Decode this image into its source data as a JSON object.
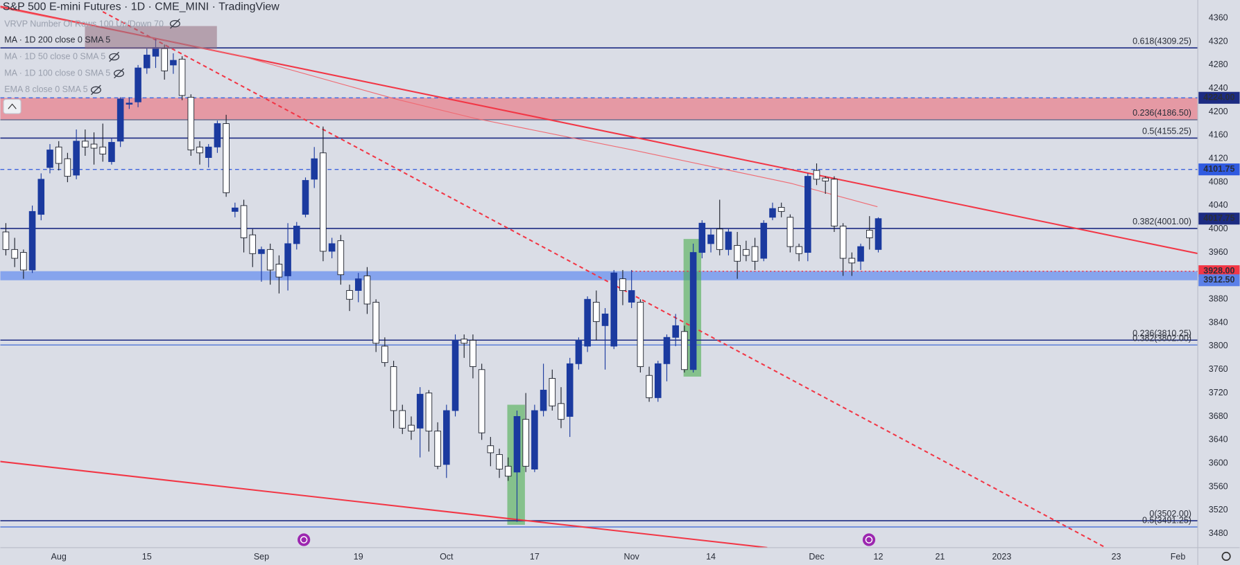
{
  "chart_data": {
    "type": "candlestick",
    "title": "S&P 500 E-mini Futures · 1D · CME_MINI · TradingView",
    "indicators": [
      "VRVP Number Of Rows 100 Up/Down 70",
      "MA · 1D 200 close 0 SMA 5",
      "MA · 1D 50 close 0 SMA 5",
      "MA · 1D 100 close 0 SMA 5",
      "EMA 8 close 0 SMA 5"
    ],
    "categories": [
      null,
      null,
      null,
      null,
      null,
      null,
      "Aug",
      null,
      null,
      null,
      null,
      null,
      null,
      null,
      null,
      null,
      "15",
      null,
      null,
      null,
      null,
      null,
      null,
      null,
      null,
      null,
      null,
      null,
      null,
      "Sep",
      null,
      null,
      null,
      null,
      null,
      null,
      null,
      null,
      null,
      null,
      "19",
      null,
      null,
      null,
      null,
      null,
      null,
      null,
      null,
      null,
      "Oct",
      null,
      null,
      null,
      null,
      null,
      null,
      null,
      null,
      null,
      "17",
      null,
      null,
      null,
      null,
      null,
      null,
      null,
      null,
      null,
      null,
      "Nov",
      null,
      null,
      null,
      null,
      null,
      null,
      null,
      null,
      "14",
      null,
      null,
      null,
      null,
      null,
      null,
      null,
      null,
      null,
      null,
      null,
      "Dec",
      null,
      null,
      null,
      null,
      null,
      null,
      "12",
      null,
      null,
      null,
      null,
      null,
      null,
      "21",
      null,
      null,
      null,
      null,
      null,
      null,
      "2023",
      null,
      null,
      null,
      null,
      null,
      null,
      null,
      null,
      null,
      null,
      null,
      null,
      "23",
      null,
      null,
      null,
      null,
      null,
      null,
      "Feb",
      null
    ],
    "open": [
      3995,
      3965,
      3960,
      3930,
      4025,
      4105,
      4140,
      4120,
      4092,
      4150,
      4145,
      4140,
      4115,
      4150,
      4213,
      4217,
      4275,
      4295,
      4308,
      4280,
      4290,
      4225,
      4140,
      4122,
      4140,
      4180,
      4030,
      4040,
      3990,
      3958,
      3965,
      3940,
      3920,
      3975,
      4025,
      4085,
      4130,
      3962,
      3980,
      3895,
      3895,
      3920,
      3875,
      3800,
      3765,
      3690,
      3665,
      3660,
      3720,
      3655,
      3598,
      3690,
      3812,
      3810,
      3760,
      3630,
      3615,
      3595,
      3585,
      3675,
      3590,
      3690,
      3745,
      3702,
      3680,
      3770,
      3800,
      3875,
      3835,
      3800,
      3915,
      3875,
      3875,
      3750,
      3712,
      3770,
      3815,
      3825,
      3760,
      3960,
      3975,
      4000,
      3965,
      3972,
      3965,
      3970,
      3950,
      4020,
      4037,
      4020,
      3970,
      3960,
      4100,
      4087,
      4085,
      4005,
      3950,
      3945,
      3998,
      3965,
      null,
      null,
      null,
      null,
      null,
      null,
      null,
      null,
      null,
      null,
      null,
      null,
      null,
      null,
      null,
      null,
      null,
      null,
      null,
      null,
      null,
      null,
      null,
      null,
      null,
      null,
      null,
      null,
      null,
      null,
      null,
      null,
      null,
      null,
      null
    ],
    "high": [
      4010,
      3985,
      3965,
      4040,
      4095,
      4145,
      4150,
      4130,
      4170,
      4170,
      4165,
      4180,
      4155,
      4225,
      4225,
      4280,
      4310,
      4325,
      4315,
      4300,
      4295,
      4230,
      4150,
      4145,
      4185,
      4195,
      4045,
      4050,
      4000,
      3970,
      3975,
      3955,
      4010,
      4012,
      4088,
      4140,
      4175,
      3985,
      3990,
      3905,
      3925,
      3935,
      3880,
      3815,
      3775,
      3700,
      3680,
      3730,
      3725,
      3670,
      3700,
      3820,
      3820,
      3820,
      3770,
      3645,
      3625,
      3610,
      3690,
      3720,
      3700,
      3770,
      3760,
      3730,
      3780,
      3815,
      3885,
      3895,
      3865,
      3930,
      3930,
      3930,
      3880,
      3765,
      3775,
      3820,
      3855,
      3835,
      3975,
      4015,
      4000,
      4050,
      4000,
      3995,
      3980,
      3985,
      4015,
      4045,
      4045,
      4025,
      3975,
      4095,
      4112,
      4090,
      4090,
      4010,
      3960,
      3975,
      4022,
      4020,
      null,
      null,
      null,
      null,
      null,
      null,
      null,
      null,
      null,
      null,
      null,
      null,
      null,
      null,
      null,
      null,
      null,
      null,
      null,
      null,
      null,
      null,
      null,
      null,
      null,
      null,
      null,
      null,
      null,
      null,
      null,
      null,
      null,
      null,
      null
    ],
    "low": [
      3955,
      3935,
      3915,
      3925,
      4015,
      4095,
      4100,
      4080,
      4085,
      4125,
      4110,
      4115,
      4110,
      4140,
      4205,
      4208,
      4265,
      4275,
      4255,
      4265,
      4220,
      4125,
      4110,
      4105,
      4130,
      4055,
      4020,
      3960,
      3935,
      3910,
      3905,
      3890,
      3895,
      3965,
      4020,
      4070,
      3945,
      3950,
      3905,
      3860,
      3875,
      3855,
      3790,
      3765,
      3660,
      3650,
      3640,
      3610,
      3620,
      3590,
      3575,
      3680,
      3780,
      3745,
      3640,
      3595,
      3575,
      3570,
      3500,
      3585,
      3585,
      3680,
      3690,
      3660,
      3645,
      3760,
      3790,
      3810,
      3760,
      3795,
      3870,
      3865,
      3755,
      3705,
      3705,
      3740,
      3800,
      3755,
      3755,
      3950,
      3960,
      3955,
      3955,
      3915,
      3945,
      3930,
      3945,
      4015,
      4020,
      3960,
      3945,
      3945,
      4075,
      4060,
      3995,
      3920,
      3920,
      3930,
      3965,
      3960,
      null,
      null,
      null,
      null,
      null,
      null,
      null,
      null,
      null,
      null,
      null,
      null,
      null,
      null,
      null,
      null,
      null,
      null,
      null,
      null,
      null,
      null,
      null,
      null,
      null,
      null,
      null,
      null,
      null,
      null,
      null,
      null,
      null,
      null,
      null
    ],
    "close": [
      3965,
      3950,
      3930,
      4030,
      4085,
      4135,
      4112,
      4090,
      4150,
      4140,
      4138,
      4128,
      4148,
      4222,
      4215,
      4275,
      4297,
      4310,
      4270,
      4288,
      4228,
      4135,
      4130,
      4140,
      4180,
      4062,
      4036,
      3985,
      3958,
      3965,
      3930,
      3918,
      3975,
      4005,
      4083,
      4120,
      3962,
      3975,
      3922,
      3880,
      3915,
      3872,
      3805,
      3772,
      3690,
      3660,
      3655,
      3718,
      3655,
      3595,
      3690,
      3810,
      3805,
      3765,
      3652,
      3618,
      3590,
      3578,
      3680,
      3595,
      3690,
      3725,
      3698,
      3675,
      3770,
      3810,
      3880,
      3842,
      3855,
      3925,
      3895,
      3895,
      3765,
      3712,
      3770,
      3815,
      3835,
      3760,
      3960,
      4010,
      3990,
      3965,
      3995,
      3945,
      3955,
      3945,
      4010,
      4035,
      4030,
      3970,
      3958,
      4090,
      4085,
      4082,
      4005,
      3950,
      3942,
      3970,
      3985,
      4017.75,
      null,
      null,
      null,
      null,
      null,
      null,
      null,
      null,
      null,
      null,
      null,
      null,
      null,
      null,
      null,
      null,
      null,
      null,
      null,
      null,
      null,
      null,
      null,
      null,
      null,
      null,
      null,
      null,
      null,
      null,
      null,
      null,
      null,
      null,
      null
    ],
    "up_color": "#1b3a9f",
    "down_color": "#ffffff",
    "ylim": [
      3456,
      4391
    ],
    "yticks": [
      3480,
      3520,
      3560,
      3600,
      3640,
      3680,
      3720,
      3760,
      3800,
      3840,
      3880,
      3960,
      4000,
      4040,
      4080,
      4120,
      4160,
      4200,
      4240,
      4280,
      4320,
      4360
    ],
    "zones": [
      {
        "from": 4186.5,
        "to": 4224,
        "color": "rgba(238,96,110,0.55)"
      },
      {
        "from": 3912.5,
        "to": 3928,
        "color": "rgba(98,140,240,0.7)"
      }
    ],
    "levels": [
      {
        "value": 4309.25,
        "label": "0.618(4309.25)",
        "color": "#1c2b82",
        "style": "solid"
      },
      {
        "value": 4224,
        "color": "#3d63dd",
        "style": "dashed"
      },
      {
        "value": 4186.5,
        "label": "0.236(4186.50)",
        "color": "#6b6f8f",
        "style": "solid"
      },
      {
        "value": 4155.25,
        "label": "0.5(4155.25)",
        "color": "#1c2b82",
        "style": "solid"
      },
      {
        "value": 4101.75,
        "color": "#3d63dd",
        "style": "dashed"
      },
      {
        "value": 4001,
        "label": "0.382(4001.00)",
        "color": "#1c2b82",
        "style": "solid"
      },
      {
        "value": 3928,
        "color": "#f23645",
        "style": "dotted",
        "start": 71
      },
      {
        "value": 3810.25,
        "label": "0.236(3810.25)",
        "color": "#1c2b82",
        "style": "solid"
      },
      {
        "value": 3802,
        "label": "0.382(3802.00)",
        "color": "#5c7fd8",
        "style": "solid"
      },
      {
        "value": 3502,
        "label": "0(3502.00)",
        "color": "#1c2b82",
        "style": "solid"
      },
      {
        "value": 3491.25,
        "label": "0.5(3491.25)",
        "color": "#5c7fd8",
        "style": "solid"
      }
    ],
    "price_labels": [
      {
        "value": 4224,
        "label": "4224.00",
        "color": "#1c2b82"
      },
      {
        "value": 4101.75,
        "label": "4101.75",
        "color": "#2f5ae0"
      },
      {
        "value": 4017.75,
        "label": "4017.75",
        "color": "#1c2b82"
      },
      {
        "value": 3928,
        "label": "3928.00",
        "color": "#f23645"
      },
      {
        "value": 3912.5,
        "label": "3912.50",
        "color": "#5b80e8"
      }
    ],
    "trendlines": [
      {
        "points": [
          [
            -0.63,
            4380
          ],
          [
            135.3,
            3958
          ]
        ],
        "color": "#f23645",
        "style": "solid"
      },
      {
        "points": [
          [
            -0.63,
            3603
          ],
          [
            86.4,
            3456
          ]
        ],
        "color": "#f23645",
        "style": "solid"
      },
      {
        "points": [
          [
            11.0,
            4371
          ],
          [
            125.8,
            3448
          ]
        ],
        "color": "#f23645",
        "style": "dashed"
      },
      {
        "points": [
          [
            -0.63,
            4378
          ],
          [
            26.3,
            4297
          ],
          [
            44.2,
            4222
          ],
          [
            53.2,
            4189
          ],
          [
            71.1,
            4135
          ],
          [
            89.1,
            4078
          ],
          [
            98.9,
            4038
          ]
        ],
        "color": "#f06a72",
        "style": "thin"
      }
    ],
    "highlights": [
      {
        "x": [
          56.9,
          58.9
        ],
        "y": [
          3495,
          3700
        ],
        "color": "rgba(76,175,80,0.6)"
      },
      {
        "x": [
          76.9,
          78.9
        ],
        "y": [
          3748,
          3983
        ],
        "color": "rgba(76,175,80,0.6)"
      }
    ]
  }
}
